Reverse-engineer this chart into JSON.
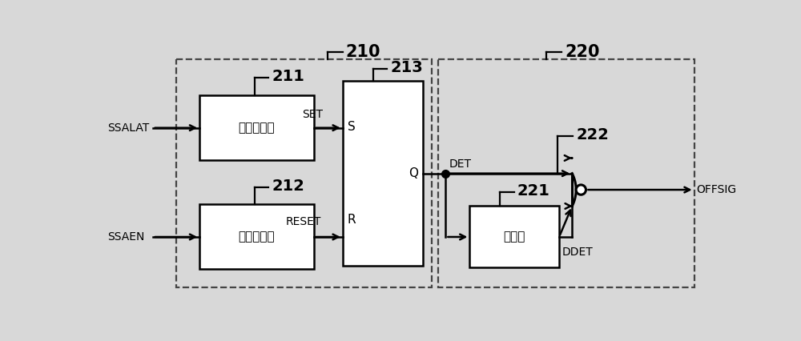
{
  "bg_color": "#d8d8d8",
  "line_color": "#000000",
  "box_color": "#ffffff",
  "dashed_color": "#444444",
  "label_211": "脉冲产生器",
  "label_212": "脉冲产生器",
  "label_221": "延迟器",
  "ref_210": "210",
  "ref_211": "211",
  "ref_212": "212",
  "ref_213": "213",
  "ref_220": "220",
  "ref_221": "221",
  "ref_222": "222",
  "sig_ssalat": "SSALAT",
  "sig_ssaen": "SSAEN",
  "sig_set": "SET",
  "sig_reset": "RESET",
  "sig_s": "S",
  "sig_r": "R",
  "sig_q": "Q",
  "sig_det": "DET",
  "sig_ddet": "DDET",
  "sig_offsig": "OFFSIG"
}
